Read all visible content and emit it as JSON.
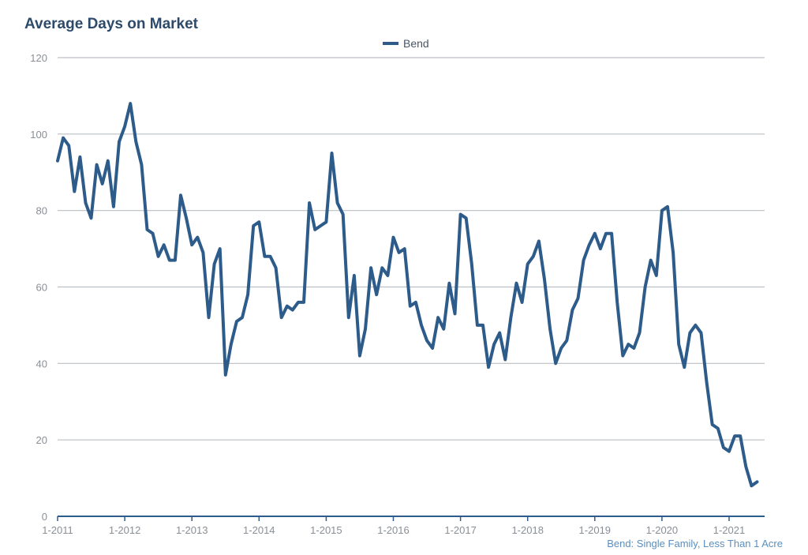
{
  "title": "Average Days on Market",
  "footnote": "Bend: Single Family, Less Than 1 Acre",
  "colors": {
    "series": "#2d5b8a",
    "grid": "#bcbfc3",
    "axis": "#2d5b8a",
    "title": "#2e4a6b",
    "footnote": "#5b8fbf"
  },
  "chart_data": {
    "type": "line",
    "title": "Average Days on Market",
    "xlabel": "",
    "ylabel": "",
    "ylim": [
      0,
      120
    ],
    "yticks": [
      0,
      20,
      40,
      60,
      80,
      100,
      120
    ],
    "xticks": [
      "1-2011",
      "1-2012",
      "1-2013",
      "1-2014",
      "1-2015",
      "1-2016",
      "1-2017",
      "1-2018",
      "1-2019",
      "1-2020",
      "1-2021"
    ],
    "grid": true,
    "legend": "top-center",
    "x_start": "2011-01",
    "x_end": "2021-07",
    "series": [
      {
        "name": "Bend",
        "values": [
          93,
          99,
          97,
          85,
          94,
          82,
          78,
          92,
          87,
          93,
          81,
          98,
          102,
          108,
          98,
          92,
          75,
          74,
          68,
          71,
          67,
          67,
          84,
          78,
          71,
          73,
          69,
          52,
          66,
          70,
          37,
          45,
          51,
          52,
          58,
          76,
          77,
          68,
          68,
          65,
          52,
          55,
          54,
          56,
          56,
          82,
          75,
          76,
          77,
          95,
          82,
          79,
          52,
          63,
          42,
          49,
          65,
          58,
          65,
          63,
          73,
          69,
          70,
          55,
          56,
          50,
          46,
          44,
          52,
          49,
          61,
          53,
          79,
          78,
          66,
          50,
          50,
          39,
          45,
          48,
          41,
          52,
          61,
          56,
          66,
          68,
          72,
          62,
          49,
          40,
          44,
          46,
          54,
          57,
          67,
          71,
          74,
          70,
          74,
          74,
          56,
          42,
          45,
          44,
          48,
          60,
          67,
          63,
          80,
          81,
          69,
          45,
          39,
          48,
          50,
          48,
          35,
          24,
          23,
          18,
          17,
          21,
          21,
          13,
          8,
          9
        ]
      }
    ]
  }
}
